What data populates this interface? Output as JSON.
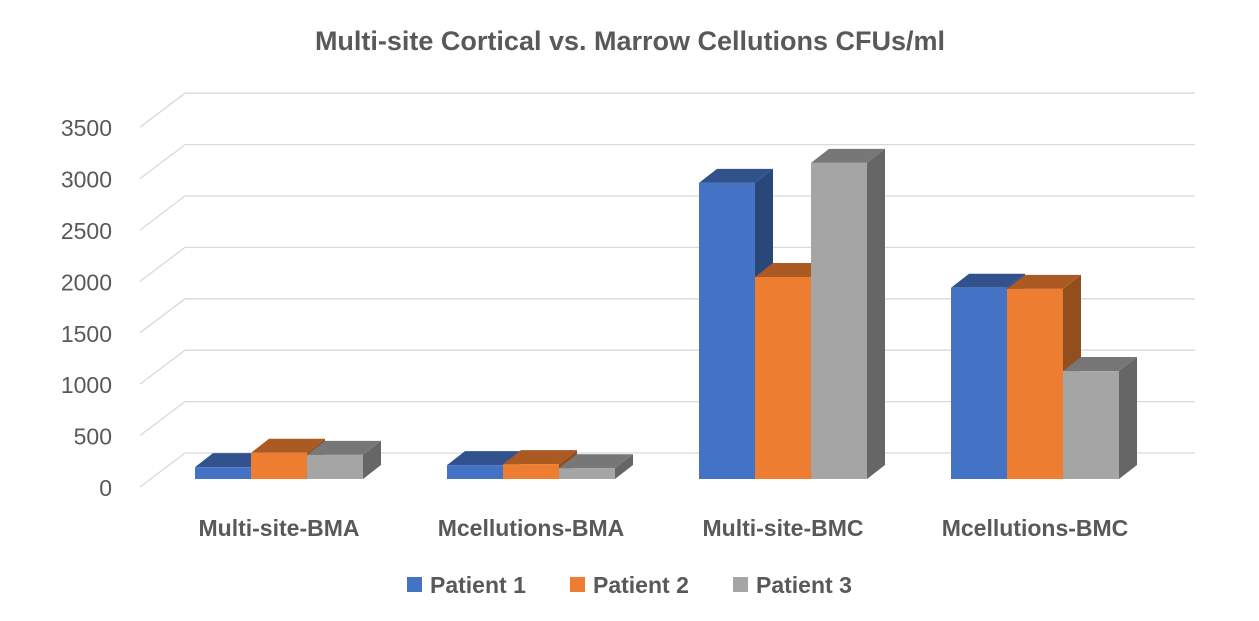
{
  "chart_data": {
    "type": "bar",
    "style": "3d-clustered-column",
    "title": "Multi-site Cortical vs. Marrow Cellutions CFUs/ml",
    "xlabel": "",
    "ylabel": "",
    "ylim": [
      0,
      3500
    ],
    "yticks": [
      0,
      500,
      1000,
      1500,
      2000,
      2500,
      3000,
      3500
    ],
    "grid": true,
    "legend_position": "bottom",
    "categories": [
      "Multi-site-BMA",
      "Mcellutions-BMA",
      "Multi-site-BMC",
      "Mcellutions-BMC"
    ],
    "series": [
      {
        "name": "Patient 1",
        "color": "#4472C4",
        "values": [
          115,
          135,
          2880,
          1860
        ]
      },
      {
        "name": "Patient 2",
        "color": "#ED7D31",
        "values": [
          255,
          145,
          1965,
          1850
        ]
      },
      {
        "name": "Patient 3",
        "color": "#A5A5A5",
        "values": [
          235,
          105,
          3075,
          1050
        ]
      }
    ]
  }
}
